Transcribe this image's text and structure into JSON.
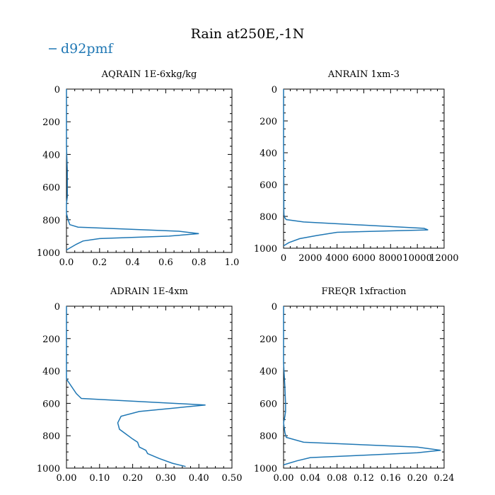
{
  "figure": {
    "title": "Rain at250E,-1N",
    "legend": {
      "label": "d92pmf",
      "color": "#1f77b4"
    }
  },
  "chart_data": [
    {
      "type": "line",
      "title": "AQRAIN  1E-6xkg/kg",
      "series": [
        {
          "name": "d92pmf",
          "x": [
            0.0,
            0.0,
            0.0,
            0.005,
            0.005,
            0.005,
            0.0,
            0.0,
            0.01,
            0.02,
            0.07,
            0.68,
            0.8,
            0.62,
            0.2,
            0.1,
            0.06,
            0.0
          ],
          "y": [
            0,
            150,
            350,
            500,
            600,
            660,
            700,
            760,
            800,
            830,
            845,
            870,
            885,
            900,
            915,
            930,
            950,
            985
          ]
        }
      ],
      "xlim": [
        0.0,
        1.0
      ],
      "ylim": [
        1000,
        0
      ],
      "xticks": [
        "0.0",
        "0.2",
        "0.4",
        "0.6",
        "0.8",
        "1.0"
      ],
      "yticks": [
        "0",
        "200",
        "400",
        "600",
        "800",
        "1000"
      ]
    },
    {
      "type": "line",
      "title": "ANRAIN  1xm-3",
      "series": [
        {
          "name": "d92pmf",
          "x": [
            0,
            0,
            0,
            10,
            20,
            20,
            20,
            30,
            100,
            200,
            1500,
            10500,
            10800,
            4000,
            2500,
            1200,
            400,
            0
          ],
          "y": [
            0,
            150,
            350,
            500,
            600,
            700,
            760,
            790,
            810,
            820,
            835,
            875,
            885,
            900,
            920,
            940,
            965,
            985
          ]
        }
      ],
      "xlim": [
        0,
        12000
      ],
      "ylim": [
        1000,
        0
      ],
      "xticks": [
        "0",
        "2000",
        "4000",
        "6000",
        "8000",
        "10000",
        "12000"
      ],
      "yticks": [
        "0",
        "200",
        "400",
        "600",
        "800",
        "1000"
      ]
    },
    {
      "type": "line",
      "title": "ADRAIN  1E-4xm",
      "series": [
        {
          "name": "d92pmf",
          "x": [
            0.0,
            0.0,
            0.03,
            0.045,
            0.42,
            0.22,
            0.165,
            0.155,
            0.16,
            0.18,
            0.2,
            0.215,
            0.22,
            0.24,
            0.245,
            0.28,
            0.32,
            0.36
          ],
          "y": [
            0,
            450,
            540,
            570,
            610,
            650,
            680,
            720,
            760,
            790,
            820,
            840,
            870,
            890,
            910,
            940,
            970,
            990
          ]
        }
      ],
      "xlim": [
        0.0,
        0.5
      ],
      "ylim": [
        1000,
        0
      ],
      "xticks": [
        "0.00",
        "0.10",
        "0.20",
        "0.30",
        "0.40",
        "0.50"
      ],
      "yticks": [
        "0",
        "200",
        "400",
        "600",
        "800",
        "1000"
      ]
    },
    {
      "type": "line",
      "title": "FREQR  1xfraction",
      "series": [
        {
          "name": "d92pmf",
          "x": [
            0.0,
            0.0,
            0.0,
            0.002,
            0.003,
            0.003,
            0.002,
            0.0,
            0.002,
            0.004,
            0.03,
            0.2,
            0.235,
            0.2,
            0.12,
            0.04,
            0.02,
            0.0
          ],
          "y": [
            0,
            150,
            350,
            500,
            600,
            650,
            680,
            720,
            780,
            810,
            840,
            870,
            890,
            905,
            920,
            935,
            955,
            980
          ]
        }
      ],
      "xlim": [
        0.0,
        0.24
      ],
      "ylim": [
        1000,
        0
      ],
      "xticks": [
        "0.00",
        "0.04",
        "0.08",
        "0.12",
        "0.16",
        "0.20",
        "0.24"
      ],
      "yticks": [
        "0",
        "200",
        "400",
        "600",
        "800",
        "1000"
      ]
    }
  ]
}
